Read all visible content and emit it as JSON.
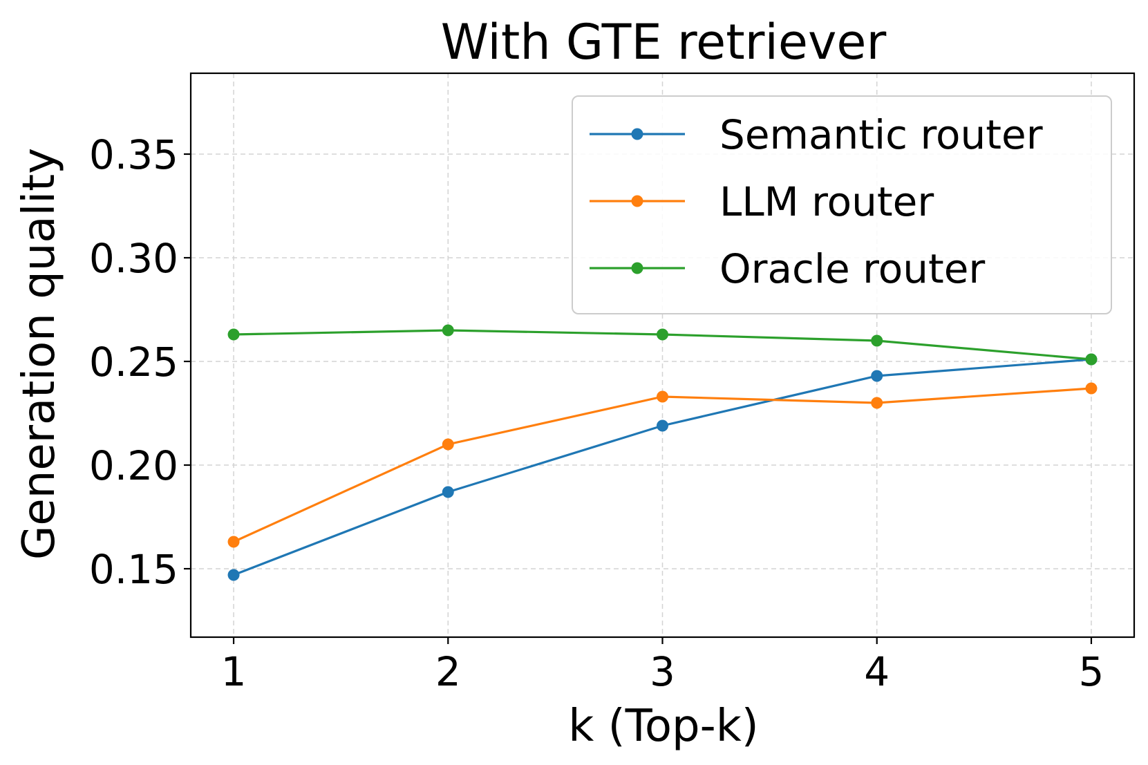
{
  "chart_data": {
    "type": "line",
    "title": "With GTE retriever",
    "xlabel": "k (Top-k)",
    "ylabel": "Generation quality",
    "x": [
      1,
      2,
      3,
      4,
      5
    ],
    "xticks": [
      "1",
      "2",
      "3",
      "4",
      "5"
    ],
    "xlim": [
      0.8,
      5.2
    ],
    "ylim": [
      0.117,
      0.389
    ],
    "yticks": [
      "0.15",
      "0.20",
      "0.25",
      "0.30",
      "0.35"
    ],
    "ytick_values": [
      0.15,
      0.2,
      0.25,
      0.3,
      0.35
    ],
    "grid": true,
    "legend_position": "top-right",
    "series": [
      {
        "name": "Semantic router",
        "color": "#1f77b4",
        "values": [
          0.147,
          0.187,
          0.219,
          0.243,
          0.251
        ]
      },
      {
        "name": "LLM router",
        "color": "#ff7f0e",
        "values": [
          0.163,
          0.21,
          0.233,
          0.23,
          0.237
        ]
      },
      {
        "name": "Oracle router",
        "color": "#2ca02c",
        "values": [
          0.263,
          0.265,
          0.263,
          0.26,
          0.251
        ]
      }
    ]
  }
}
